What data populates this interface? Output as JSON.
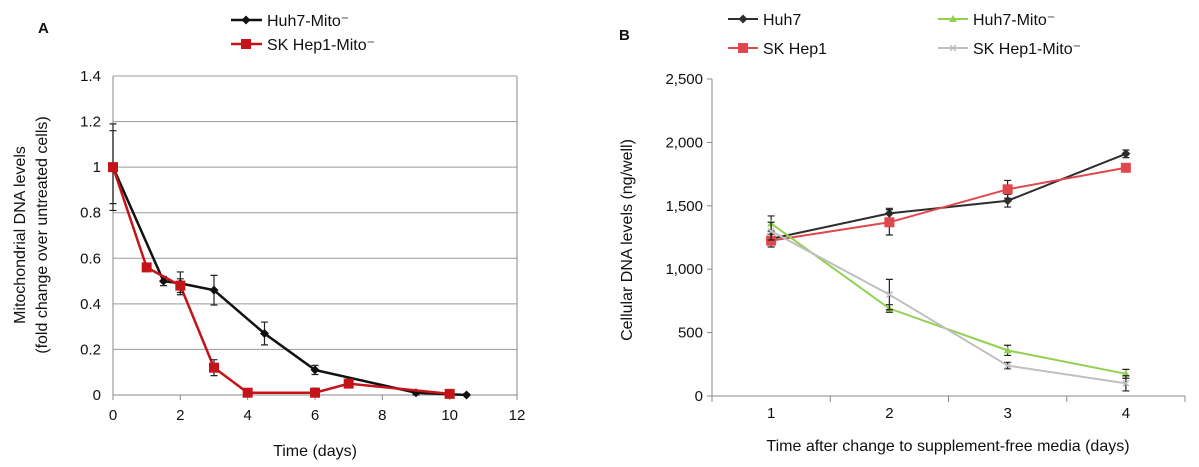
{
  "chart_data": [
    {
      "panel": "A",
      "type": "line",
      "xlabel": "Time (days)",
      "ylabel": [
        "Mitochondrial DNA levels",
        "(fold change over untreated cells)"
      ],
      "xlim": [
        0,
        12
      ],
      "ylim": [
        0,
        1.4
      ],
      "xticks": [
        "0",
        "2",
        "4",
        "6",
        "8",
        "10",
        "12"
      ],
      "yticks": [
        "0",
        "0.2",
        "0.4",
        "0.6",
        "0.8",
        "1",
        "1.2",
        "1.4"
      ],
      "grid": "horizontal",
      "legend": "top",
      "series": [
        {
          "name": "Huh7-Mito⁻",
          "color": "#111111",
          "marker": "diamond",
          "x": [
            0,
            1.5,
            2,
            3,
            4.5,
            6,
            9,
            10.5
          ],
          "y": [
            1.0,
            0.5,
            0.49,
            0.46,
            0.27,
            0.11,
            0.01,
            0.0
          ],
          "err": [
            0.19,
            0.02,
            0.05,
            0.065,
            0.05,
            0.02,
            0.01,
            0.005
          ]
        },
        {
          "name": "SK Hep1-Mito⁻",
          "color": "#c4141a",
          "marker": "square",
          "x": [
            0,
            1,
            2,
            3,
            4,
            6,
            7,
            10
          ],
          "y": [
            1.0,
            0.56,
            0.48,
            0.12,
            0.01,
            0.01,
            0.05,
            0.005
          ],
          "err": [
            0.16,
            0.01,
            0.03,
            0.035,
            0.005,
            0.02,
            0.01,
            0.005
          ]
        }
      ]
    },
    {
      "panel": "B",
      "type": "line",
      "xlabel": "Time after change to supplement-free media (days)",
      "ylabel": "Cellular DNA levels (ng/well)",
      "categories": [
        "1",
        "2",
        "3",
        "4"
      ],
      "ylim": [
        0,
        2500
      ],
      "yticks": [
        "0",
        "500",
        "1,000",
        "1,500",
        "2,000",
        "2,500"
      ],
      "grid": "none",
      "legend": "top",
      "series": [
        {
          "name": "Huh7",
          "color": "#2e2e2e",
          "marker": "diamond",
          "values": [
            1240,
            1440,
            1540,
            1910
          ],
          "err": [
            40,
            40,
            50,
            30
          ]
        },
        {
          "name": "SK Hep1",
          "color": "#e0484e",
          "marker": "square",
          "values": [
            1225,
            1370,
            1630,
            1800
          ],
          "err": [
            50,
            100,
            70,
            15
          ]
        },
        {
          "name": "Huh7-Mito⁻",
          "color": "#92d050",
          "marker": "triangle",
          "values": [
            1360,
            690,
            360,
            175
          ],
          "err": [
            60,
            30,
            40,
            35
          ]
        },
        {
          "name": "SK Hep1-Mito⁻",
          "color": "#bfbfbf",
          "marker": "cross",
          "values": [
            1300,
            800,
            240,
            100
          ],
          "err": [
            70,
            120,
            25,
            60
          ]
        }
      ]
    }
  ]
}
